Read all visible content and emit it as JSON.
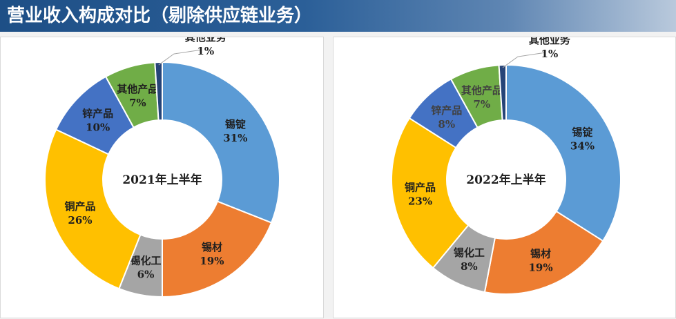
{
  "header": {
    "title": "营业收入构成对比（剔除供应链业务）"
  },
  "colors": {
    "锡锭": "#5b9bd5",
    "锡材": "#ed7d31",
    "锡化工": "#a5a5a5",
    "铜产品": "#ffc000",
    "锌产品": "#4472c4",
    "其他产品": "#70ad47",
    "其他业务": "#264478"
  },
  "chart_data": [
    {
      "type": "pie",
      "donut": true,
      "center_label": "2021年上半年",
      "slices": [
        {
          "name": "锡锭",
          "value": 31,
          "label": "31%"
        },
        {
          "name": "锡材",
          "value": 19,
          "label": "19%"
        },
        {
          "name": "锡化工",
          "value": 6,
          "label": "6%"
        },
        {
          "name": "铜产品",
          "value": 26,
          "label": "26%"
        },
        {
          "name": "锌产品",
          "value": 10,
          "label": "10%"
        },
        {
          "name": "其他产品",
          "value": 7,
          "label": "7%"
        },
        {
          "name": "其他业务",
          "value": 1,
          "label": "1%"
        }
      ]
    },
    {
      "type": "pie",
      "donut": true,
      "center_label": "2022年上半年",
      "slices": [
        {
          "name": "锡锭",
          "value": 34,
          "label": "34%"
        },
        {
          "name": "锡材",
          "value": 19,
          "label": "19%"
        },
        {
          "name": "锡化工",
          "value": 8,
          "label": "8%"
        },
        {
          "name": "铜产品",
          "value": 23,
          "label": "23%"
        },
        {
          "name": "锌产品",
          "value": 8,
          "label": "8%"
        },
        {
          "name": "其他产品",
          "value": 7,
          "label": "7%"
        },
        {
          "name": "其他业务",
          "value": 1,
          "label": "1%"
        }
      ]
    }
  ]
}
